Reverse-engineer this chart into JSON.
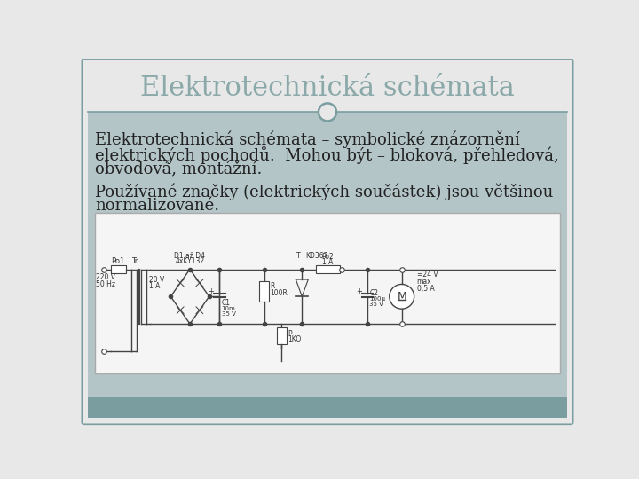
{
  "title": "Elektrotechnická schémata",
  "title_color": "#8ca9aa",
  "bg_outer": "#e8e8e8",
  "bg_content": "#b4c5c8",
  "bg_diagram": "#f5f5f5",
  "divider_color": "#7a9ea0",
  "text_color": "#222222",
  "text_lines_p1": [
    "Elektrotechnická schémata – symbolické znázornění",
    "elektrických pochodů.  Mohou být – bloková, přehledová,",
    "obvodová, montážní."
  ],
  "text_lines_p2": [
    "Používané značky (elektrických součástek) jsou většinou",
    "normalizované."
  ],
  "font_size_title": 22,
  "font_size_body": 13,
  "footer_color": "#7a9ea0"
}
